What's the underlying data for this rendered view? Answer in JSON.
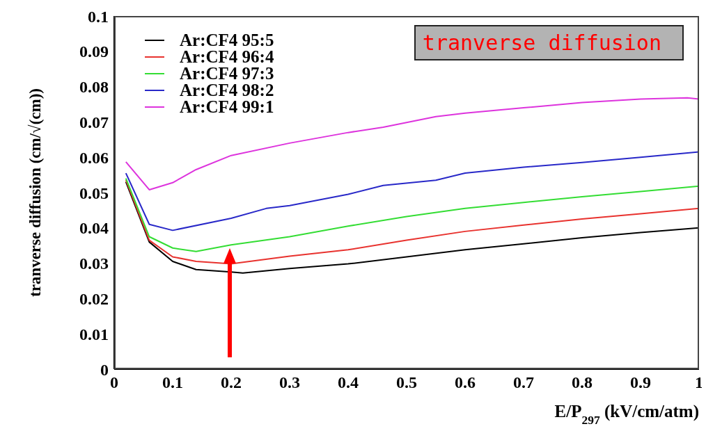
{
  "chart_data": {
    "type": "line",
    "xlabel": "E/P$_{297}$ (kV/cm/atm)",
    "ylabel": "tranverse diffusion (cm/√(cm))",
    "annotations": [
      "tranverse diffusion"
    ],
    "xlim": [
      0,
      1
    ],
    "xticks": [
      0,
      0.1,
      0.2,
      0.3,
      0.4,
      0.5,
      0.6,
      0.7,
      0.8,
      0.9,
      1
    ],
    "ylim": [
      0,
      0.1
    ],
    "yticks": [
      0,
      0.01,
      0.02,
      0.03,
      0.04,
      0.05,
      0.06,
      0.07,
      0.08,
      0.09,
      0.1
    ],
    "grid": false,
    "legend": "top left",
    "marker": "none",
    "line_style": "solid",
    "series": [
      {
        "name": "Ar:CF4 95:5",
        "color": "#000000",
        "x": [
          0.02,
          0.06,
          0.1,
          0.14,
          0.2,
          0.22,
          0.3,
          0.4,
          0.5,
          0.6,
          0.7,
          0.8,
          0.9,
          1
        ],
        "values": [
          0.053,
          0.036,
          0.0305,
          0.0282,
          0.0275,
          0.0272,
          0.0285,
          0.0298,
          0.0318,
          0.0338,
          0.0355,
          0.0372,
          0.0387,
          0.04
        ]
      },
      {
        "name": "Ar:CF4 96:4",
        "color": "#e8322e",
        "x": [
          0.02,
          0.06,
          0.1,
          0.14,
          0.2,
          0.3,
          0.4,
          0.5,
          0.6,
          0.7,
          0.8,
          0.9,
          1
        ],
        "values": [
          0.0535,
          0.0365,
          0.0318,
          0.0305,
          0.0298,
          0.032,
          0.0338,
          0.0365,
          0.039,
          0.0408,
          0.0425,
          0.044,
          0.0455
        ]
      },
      {
        "name": "Ar:CF4 97:3",
        "color": "#33dd33",
        "x": [
          0.02,
          0.06,
          0.1,
          0.14,
          0.2,
          0.3,
          0.4,
          0.5,
          0.6,
          0.7,
          0.8,
          0.9,
          1
        ],
        "values": [
          0.054,
          0.0375,
          0.0343,
          0.0333,
          0.0352,
          0.0375,
          0.0405,
          0.0432,
          0.0455,
          0.0472,
          0.0488,
          0.0503,
          0.0518
        ]
      },
      {
        "name": "Ar:CF4 98:2",
        "color": "#2828c8",
        "x": [
          0.02,
          0.06,
          0.1,
          0.2,
          0.26,
          0.3,
          0.4,
          0.46,
          0.55,
          0.6,
          0.7,
          0.8,
          0.9,
          1
        ],
        "values": [
          0.0555,
          0.041,
          0.0393,
          0.0427,
          0.0455,
          0.0463,
          0.0495,
          0.052,
          0.0535,
          0.0555,
          0.0572,
          0.0585,
          0.06,
          0.0615
        ]
      },
      {
        "name": "Ar:CF4 99:1",
        "color": "#dd33dd",
        "x": [
          0.02,
          0.06,
          0.1,
          0.14,
          0.2,
          0.3,
          0.4,
          0.46,
          0.55,
          0.6,
          0.7,
          0.8,
          0.9,
          0.98,
          1
        ],
        "values": [
          0.0587,
          0.0508,
          0.0528,
          0.0565,
          0.0605,
          0.064,
          0.067,
          0.0685,
          0.0715,
          0.0725,
          0.074,
          0.0755,
          0.0765,
          0.0768,
          0.0765
        ]
      }
    ]
  }
}
